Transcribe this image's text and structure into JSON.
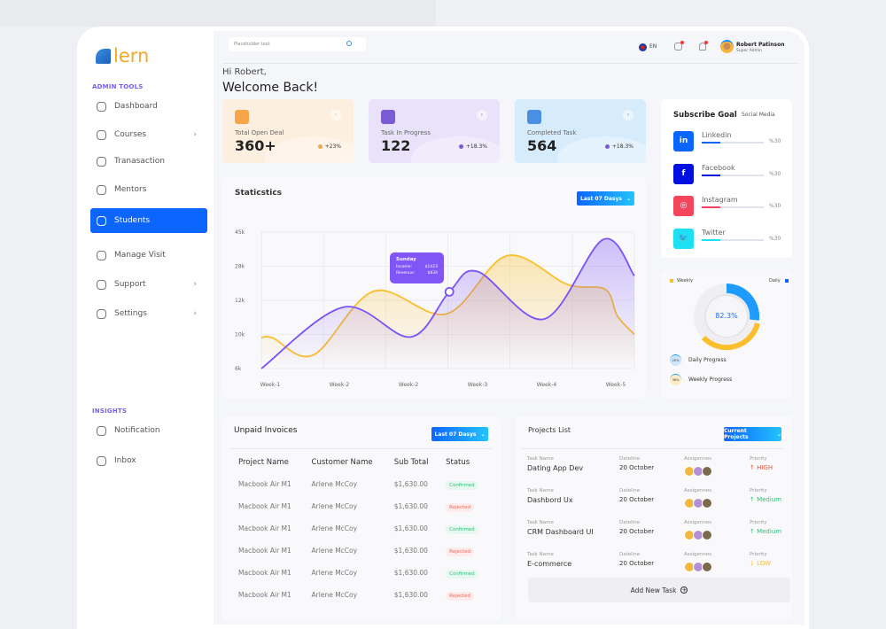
{
  "brand": {
    "name": "lern"
  },
  "sidebar": {
    "admin_title": "ADMIN TOOLS",
    "items": [
      {
        "label": "Dashboard",
        "icon": "grid-icon",
        "chevron": false,
        "active": false
      },
      {
        "label": "Courses",
        "icon": "course-icon",
        "chevron": true,
        "active": false
      },
      {
        "label": "Tranasaction",
        "icon": "transaction-icon",
        "chevron": false,
        "active": false
      },
      {
        "label": "Mentors",
        "icon": "mentor-icon",
        "chevron": false,
        "active": false
      },
      {
        "label": "Students",
        "icon": "wallet-icon",
        "chevron": false,
        "active": true
      },
      {
        "label": "Manage Visit",
        "icon": "sliders-icon",
        "chevron": false,
        "active": false
      },
      {
        "label": "Support",
        "icon": "shield-icon",
        "chevron": true,
        "active": false
      },
      {
        "label": "Settings",
        "icon": "gear-icon",
        "chevron": true,
        "active": false
      }
    ],
    "insights_title": "INSIGHTS",
    "insights": [
      {
        "label": "Notification",
        "icon": "bell-icon"
      },
      {
        "label": "Inbox",
        "icon": "inbox-icon"
      }
    ]
  },
  "header": {
    "search_placeholder": "Placeholder text",
    "language": "EN",
    "user_name": "Robert Patinson",
    "user_role": "Super Admin"
  },
  "greeting": {
    "hi": "Hi Robert,",
    "welcome": "Welcome Back!"
  },
  "stats": [
    {
      "label": "Total Open Deal",
      "value": "360+",
      "change": "+23%",
      "color": "#f7a44a",
      "bg": "#fdefdf",
      "dot": "#f7a44a"
    },
    {
      "label": "Task In Progress",
      "value": "122",
      "change": "+18.3%",
      "color": "#7b5cd6",
      "bg": "#e8e2fb",
      "dot": "#7b5cd6"
    },
    {
      "label": "Completed Task",
      "value": "564",
      "change": "+18.3%",
      "color": "#4a90e2",
      "bg": "#d6ebfc",
      "dot": "#7b5cd6"
    }
  ],
  "statistics": {
    "title": "Staticstics",
    "range_button": "Last 07 Dasys",
    "tooltip": {
      "day": "Sunday",
      "income_label": "Income:",
      "income": "$1423",
      "revenue_label": "Revenue:",
      "revenue": "$834"
    }
  },
  "chart_data": {
    "type": "area",
    "y_ticks": [
      "45k",
      "28k",
      "12k",
      "10k",
      "6k"
    ],
    "y_tick_values": [
      45,
      28,
      12,
      10,
      6
    ],
    "x_ticks": [
      "Week-1",
      "Week-2",
      "Week-2",
      "Week-3",
      "Week-4",
      "Week-5"
    ],
    "grid": true,
    "series": [
      {
        "color": "#7b52f5",
        "x": [
          0,
          1.1,
          2.0,
          2.52,
          2.9,
          3.79,
          4.58,
          5
        ],
        "y": [
          6,
          11.6,
          9.7,
          16,
          25.5,
          10.9,
          41.3,
          23.5
        ]
      },
      {
        "color": "#fbbf2e",
        "x": [
          0,
          0.15,
          0.7,
          1.51,
          2.48,
          3.29,
          4.1,
          4.61,
          4.77,
          5
        ],
        "y": [
          9.6,
          9.6,
          7.6,
          16.3,
          11.2,
          33.2,
          19.5,
          17.1,
          11.1,
          10
        ]
      }
    ],
    "highlight": {
      "series": 0,
      "x": 2.52
    }
  },
  "subscribe": {
    "title": "Subscribe Goal",
    "subtitle": "Social Media",
    "items": [
      {
        "name": "Linkedin",
        "glyph": "in",
        "icon": "linkedin-icon",
        "color": "#0a66ff",
        "percent_label": "%30",
        "percent": 30
      },
      {
        "name": "Facebook",
        "glyph": "f",
        "icon": "facebook-icon",
        "color": "#0010e0",
        "percent_label": "%30",
        "percent": 30
      },
      {
        "name": "Instagram",
        "glyph": "◎",
        "icon": "instagram-icon",
        "color": "#f5455c",
        "percent_label": "%30",
        "percent": 30
      },
      {
        "name": "Twitter",
        "glyph": "🐦",
        "icon": "twitter-icon",
        "color": "#1ee0f5",
        "percent_label": "%30",
        "percent": 30
      }
    ]
  },
  "progress": {
    "weekly_label": "Weekly",
    "daily_label": "Daily",
    "center": "82.3%",
    "daily_color": "#1d8fff",
    "weekly_color": "#fbbf2e",
    "items": [
      {
        "pct": "25%",
        "label": "Daily Progress"
      },
      {
        "pct": "36%",
        "label": "Weekly Progress"
      }
    ]
  },
  "invoices": {
    "title": "Unpaid Invoices",
    "range_button": "Last 07 Dasys",
    "columns": [
      "Project Name",
      "Customer Name",
      "Sub Total",
      "Status"
    ],
    "rows": [
      [
        "Macbook Air M1",
        "Arlene McCoy",
        "$1,630.00",
        "Confirmed"
      ],
      [
        "Macbook Air M1",
        "Arlene McCoy",
        "$1,630.00",
        "Rejected"
      ],
      [
        "Macbook Air M1",
        "Arlene McCoy",
        "$1,630.00",
        "Confirmed"
      ],
      [
        "Macbook Air M1",
        "Arlene McCoy",
        "$1,630.00",
        "Rejected"
      ],
      [
        "Macbook Air M1",
        "Arlene McCoy",
        "$1,630.00",
        "Confirmed"
      ],
      [
        "Macbook Air M1",
        "Arlene McCoy",
        "$1,630.00",
        "Rejected"
      ]
    ]
  },
  "projects": {
    "title": "Projects List",
    "filter_button": "Current Projects",
    "labels": {
      "task": "Task Name",
      "deadline": "Dateline",
      "assignees": "Assigennes",
      "priority": "Priority"
    },
    "rows": [
      {
        "task": "Dating App Dev",
        "deadline": "20 October",
        "priority": "↑ HIGH",
        "color": "#f0523c"
      },
      {
        "task": "Dashbord Ux",
        "deadline": "20 October",
        "priority": "↑ Medium",
        "color": "#2bc27a"
      },
      {
        "task": "CRM Dashboard UI",
        "deadline": "20 October",
        "priority": "↑ Medium",
        "color": "#2bc27a"
      },
      {
        "task": "E-commerce",
        "deadline": "20 October",
        "priority": "↓ LOW",
        "color": "#fbbf2e"
      }
    ],
    "add_task": "Add New Task"
  }
}
